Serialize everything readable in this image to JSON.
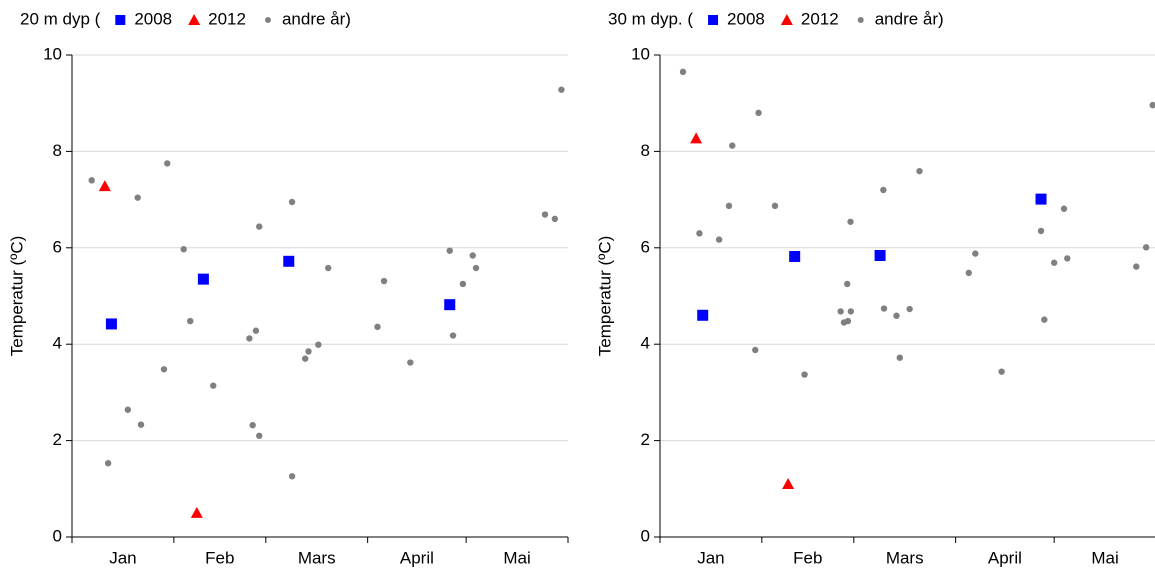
{
  "chart_data": [
    {
      "type": "scatter",
      "title": "20 m dyp (",
      "ylabel": "Temperatur (ºC)",
      "xlim": [
        0,
        151
      ],
      "xticks": [
        0,
        31,
        59,
        90,
        120,
        151
      ],
      "months": [
        "Jan",
        "Feb",
        "Mars",
        "April",
        "Mai"
      ],
      "ylim": [
        0,
        10
      ],
      "yticks": [
        0,
        2,
        4,
        6,
        8,
        10
      ],
      "grid": true,
      "series": [
        {
          "name": "2008",
          "color": "#0000ff",
          "marker": "square",
          "x": [
            12,
            40,
            66,
            115
          ],
          "values": [
            4.42,
            5.35,
            5.72,
            4.82
          ]
        },
        {
          "name": "2012",
          "color": "#ff0000",
          "marker": "triangle",
          "x": [
            10,
            38
          ],
          "values": [
            7.28,
            0.5
          ]
        },
        {
          "name": "andre år)",
          "color": "#808080",
          "marker": "circle",
          "x": [
            6,
            11,
            17,
            20,
            21,
            28,
            29,
            34,
            36,
            43,
            54,
            55,
            56,
            57,
            57,
            67,
            67,
            71,
            72,
            75,
            78,
            93,
            95,
            103,
            115,
            116,
            119,
            122,
            123,
            144,
            147,
            149
          ],
          "values": [
            7.4,
            1.53,
            2.64,
            7.04,
            2.33,
            3.48,
            7.75,
            5.97,
            4.48,
            3.14,
            4.12,
            2.32,
            4.28,
            6.44,
            2.1,
            6.95,
            1.26,
            3.7,
            3.85,
            3.99,
            5.58,
            4.36,
            5.31,
            3.62,
            5.94,
            4.18,
            5.25,
            5.84,
            5.58,
            6.69,
            6.6,
            9.28
          ]
        }
      ]
    },
    {
      "type": "scatter",
      "title": "30 m dyp. (",
      "ylabel": "Temperatur (ºC)",
      "xlim": [
        0,
        151
      ],
      "xticks": [
        0,
        31,
        59,
        90,
        120,
        151
      ],
      "months": [
        "Jan",
        "Feb",
        "Mars",
        "April",
        "Mai"
      ],
      "ylim": [
        0,
        10
      ],
      "yticks": [
        0,
        2,
        4,
        6,
        8,
        10
      ],
      "grid": true,
      "series": [
        {
          "name": "2008",
          "color": "#0000ff",
          "marker": "square",
          "x": [
            13,
            41,
            67,
            116
          ],
          "values": [
            4.6,
            5.82,
            5.84,
            7.01
          ]
        },
        {
          "name": "2012",
          "color": "#ff0000",
          "marker": "triangle",
          "x": [
            11,
            39
          ],
          "values": [
            8.27,
            1.1
          ]
        },
        {
          "name": "andre år)",
          "color": "#808080",
          "marker": "circle",
          "x": [
            7,
            12,
            18,
            21,
            22,
            29,
            30,
            35,
            44,
            55,
            56,
            57,
            57.2,
            58,
            58.1,
            68,
            68.2,
            72,
            73,
            76,
            79,
            94,
            96,
            104,
            116,
            117,
            120,
            123,
            124,
            145,
            148,
            150
          ],
          "values": [
            9.65,
            6.3,
            6.17,
            6.87,
            8.12,
            3.88,
            8.8,
            6.87,
            3.37,
            4.68,
            4.45,
            5.25,
            4.48,
            6.54,
            4.68,
            7.2,
            4.74,
            4.59,
            3.72,
            4.73,
            7.59,
            5.48,
            5.88,
            3.43,
            6.35,
            4.51,
            5.69,
            6.81,
            5.78,
            5.61,
            6.01,
            8.96
          ]
        }
      ]
    }
  ]
}
